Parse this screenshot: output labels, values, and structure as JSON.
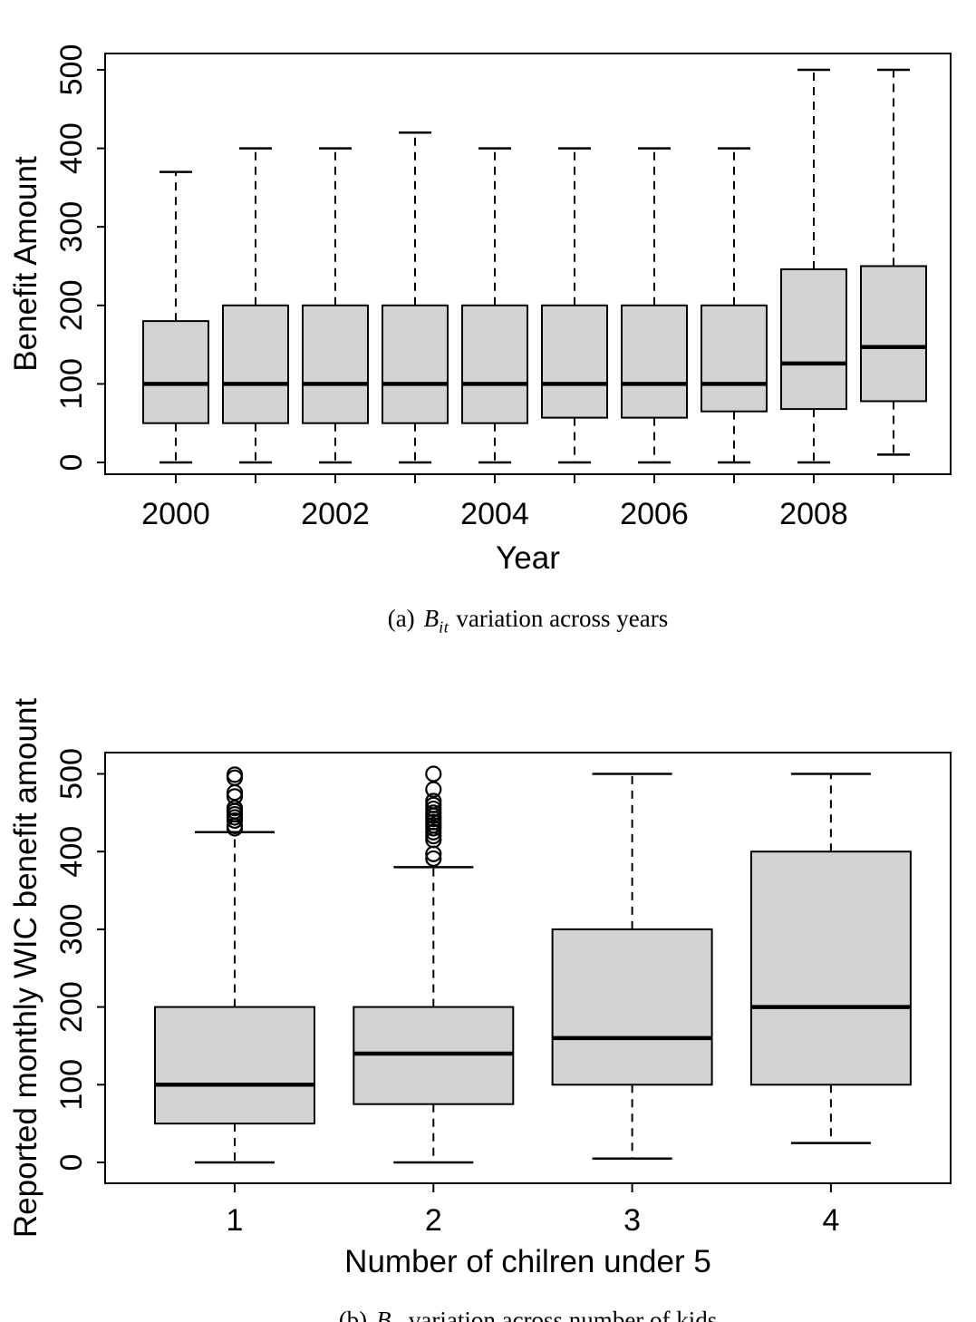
{
  "page": {
    "background": "#ffffff",
    "figure_type": "two stacked R boxplot panels"
  },
  "styles": {
    "box_fill": "#d3d3d3",
    "line_color": "#000000",
    "text_color": "#000000"
  },
  "chart_data": [
    {
      "type": "boxplot",
      "panel": "a",
      "title": "",
      "xlabel": "Year",
      "ylabel": "Benefit Amount",
      "ylim": [
        0,
        500
      ],
      "yticks": [
        0,
        100,
        200,
        300,
        400,
        500
      ],
      "grid": false,
      "legend": false,
      "categories": [
        "2000",
        "2001",
        "2002",
        "2003",
        "2004",
        "2005",
        "2006",
        "2007",
        "2008",
        "2009"
      ],
      "xtick_label_every": 2,
      "xtick_labels_shown": [
        "2000",
        "2002",
        "2004",
        "2006",
        "2008"
      ],
      "boxes": [
        {
          "category": "2000",
          "whisker_low": 0,
          "q1": 50,
          "median": 100,
          "q3": 180,
          "whisker_high": 370,
          "outliers": []
        },
        {
          "category": "2001",
          "whisker_low": 0,
          "q1": 50,
          "median": 100,
          "q3": 200,
          "whisker_high": 400,
          "outliers": []
        },
        {
          "category": "2002",
          "whisker_low": 0,
          "q1": 50,
          "median": 100,
          "q3": 200,
          "whisker_high": 400,
          "outliers": []
        },
        {
          "category": "2003",
          "whisker_low": 0,
          "q1": 50,
          "median": 100,
          "q3": 200,
          "whisker_high": 420,
          "outliers": []
        },
        {
          "category": "2004",
          "whisker_low": 0,
          "q1": 50,
          "median": 100,
          "q3": 200,
          "whisker_high": 400,
          "outliers": []
        },
        {
          "category": "2005",
          "whisker_low": 0,
          "q1": 57,
          "median": 100,
          "q3": 200,
          "whisker_high": 400,
          "outliers": []
        },
        {
          "category": "2006",
          "whisker_low": 0,
          "q1": 57,
          "median": 100,
          "q3": 200,
          "whisker_high": 400,
          "outliers": []
        },
        {
          "category": "2007",
          "whisker_low": 0,
          "q1": 65,
          "median": 100,
          "q3": 200,
          "whisker_high": 400,
          "outliers": []
        },
        {
          "category": "2008",
          "whisker_low": 0,
          "q1": 68,
          "median": 126,
          "q3": 246,
          "whisker_high": 500,
          "outliers": []
        },
        {
          "category": "2009",
          "whisker_low": 10,
          "q1": 78,
          "median": 147,
          "q3": 250,
          "whisker_high": 500,
          "outliers": []
        }
      ],
      "caption": {
        "index": "(a)",
        "math_var": "B",
        "math_sub": "it",
        "text": "variation across years"
      }
    },
    {
      "type": "boxplot",
      "panel": "b",
      "title": "",
      "xlabel": "Number of chilren under 5",
      "ylabel": "Reported monthly WIC benefit amount",
      "ylim": [
        0,
        500
      ],
      "yticks": [
        0,
        100,
        200,
        300,
        400,
        500
      ],
      "grid": false,
      "legend": false,
      "categories": [
        "1",
        "2",
        "3",
        "4"
      ],
      "xtick_label_every": 1,
      "xtick_labels_shown": [
        "1",
        "2",
        "3",
        "4"
      ],
      "boxes": [
        {
          "category": "1",
          "whisker_low": 0,
          "q1": 50,
          "median": 100,
          "q3": 200,
          "whisker_high": 425,
          "outliers": [
            430,
            433,
            440,
            444,
            448,
            452,
            456,
            471,
            476,
            495,
            499
          ]
        },
        {
          "category": "2",
          "whisker_low": 0,
          "q1": 75,
          "median": 140,
          "q3": 200,
          "whisker_high": 380,
          "outliers": [
            391,
            397,
            415,
            420,
            425,
            430,
            434,
            438,
            442,
            446,
            450,
            455,
            460,
            465,
            480,
            500
          ]
        },
        {
          "category": "3",
          "whisker_low": 5,
          "q1": 100,
          "median": 160,
          "q3": 300,
          "whisker_high": 500,
          "outliers": []
        },
        {
          "category": "4",
          "whisker_low": 25,
          "q1": 100,
          "median": 200,
          "q3": 400,
          "whisker_high": 500,
          "outliers": []
        }
      ],
      "caption": {
        "index": "(b)",
        "math_var": "B",
        "math_sub": "it",
        "text": "variation across number of kids"
      }
    }
  ]
}
